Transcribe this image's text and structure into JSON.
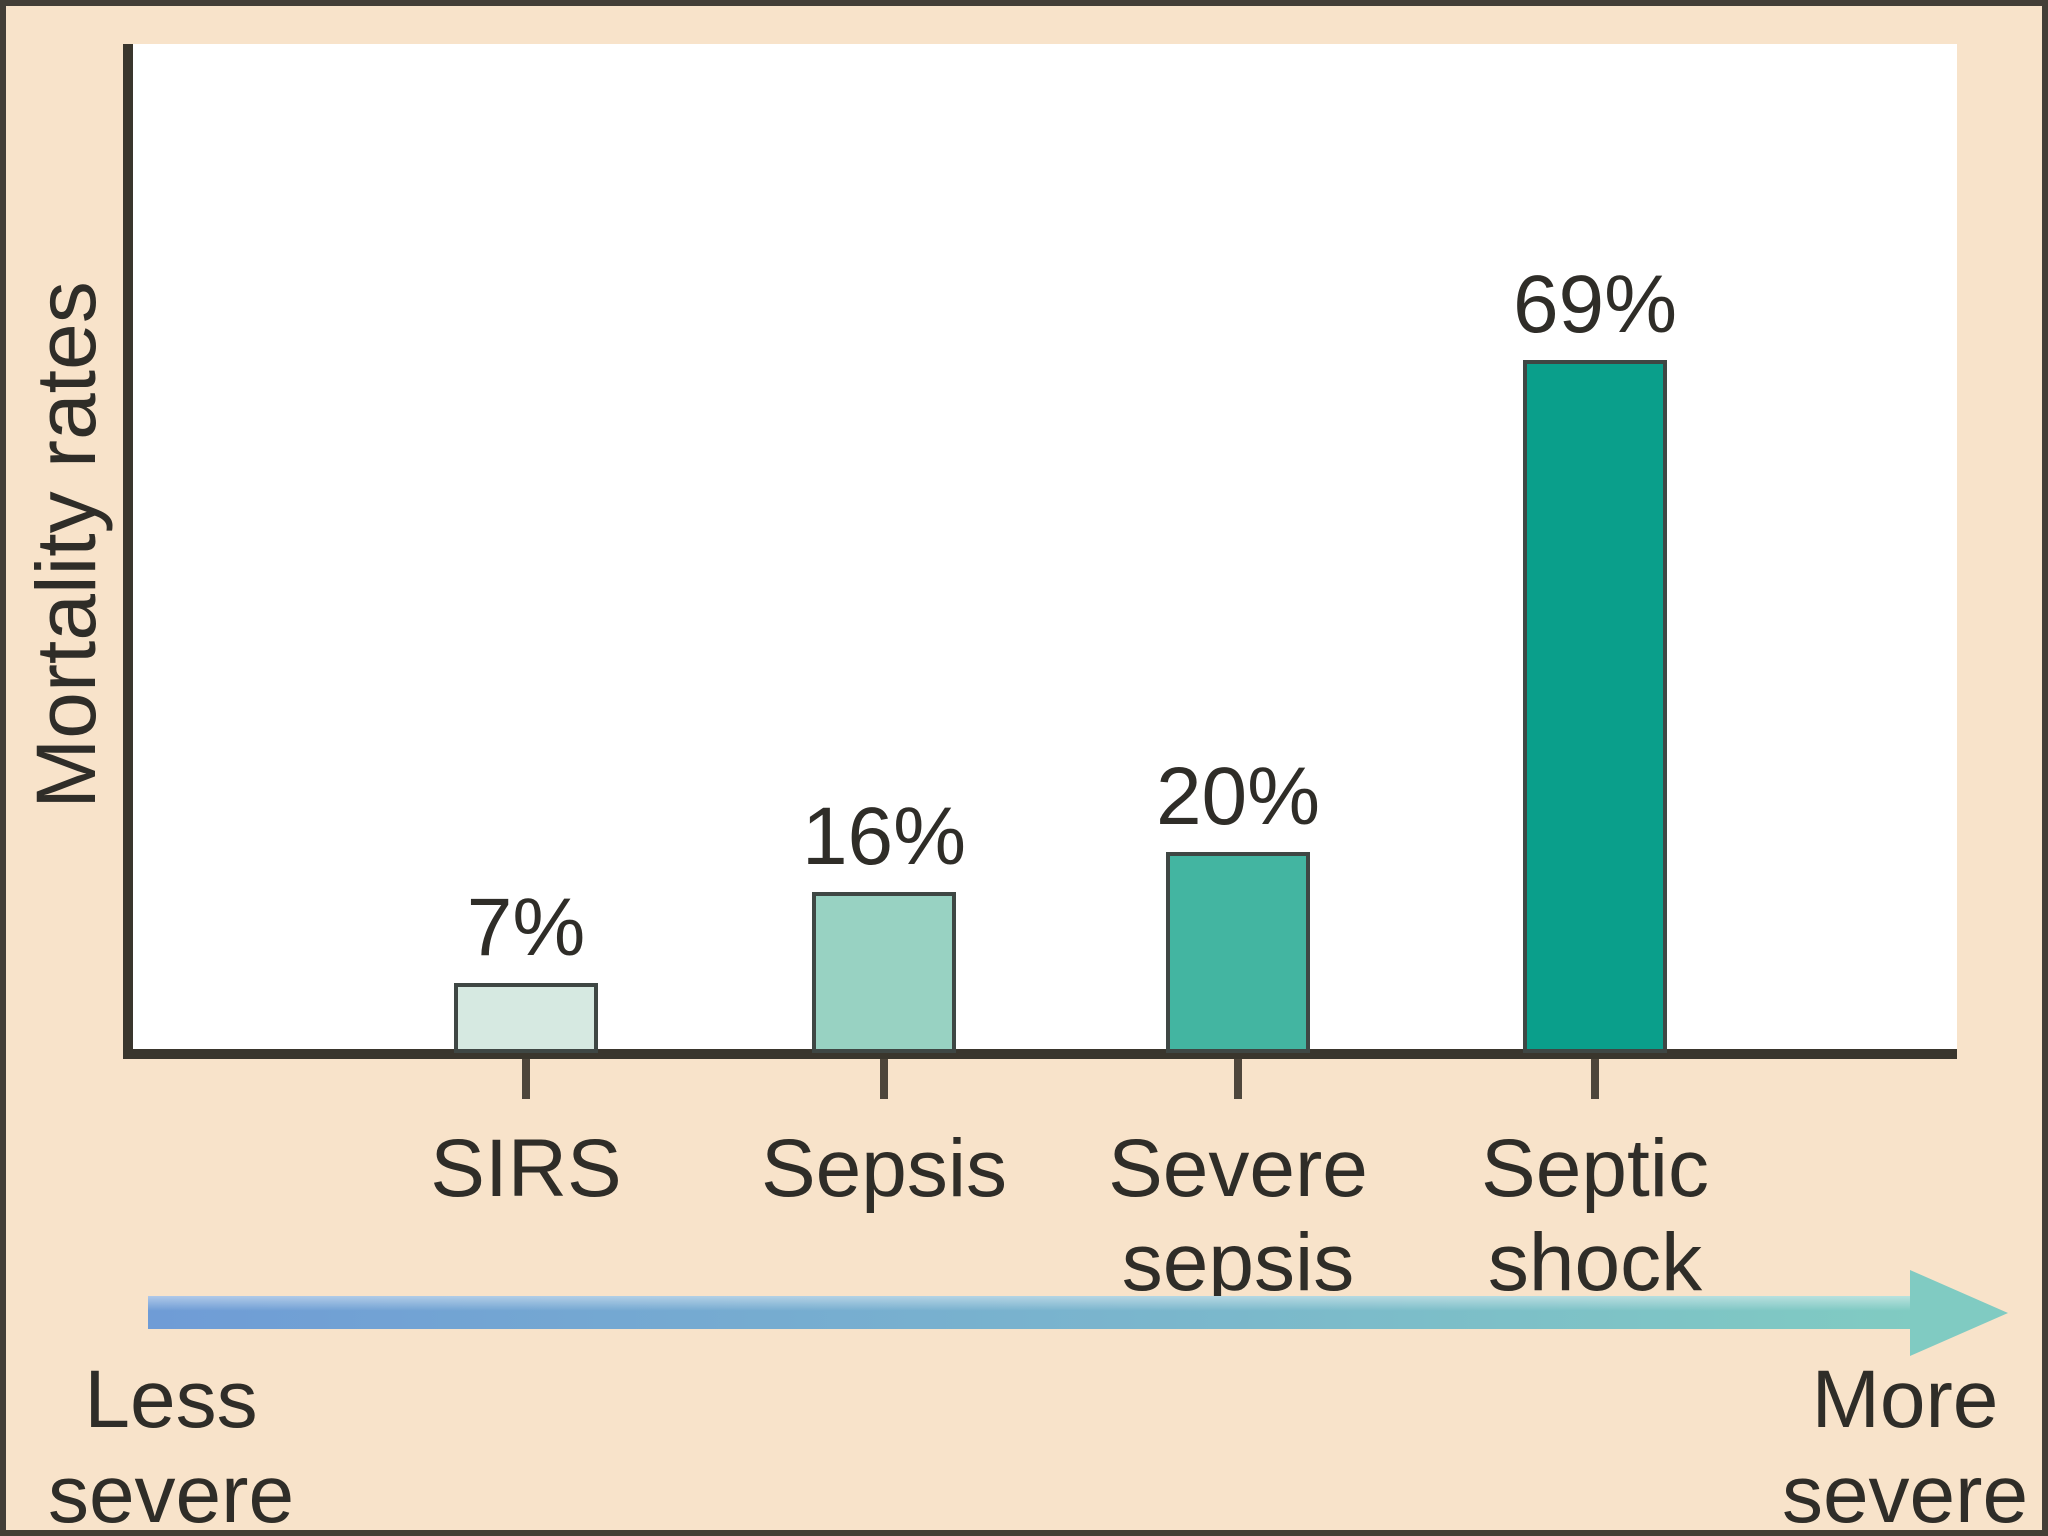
{
  "chart_data": {
    "type": "bar",
    "title": "",
    "categories": [
      "SIRS",
      "Sepsis",
      "Severe\nsepsis",
      "Septic\nshock"
    ],
    "values": [
      7,
      16,
      20,
      69
    ],
    "value_labels": [
      "7%",
      "16%",
      "20%",
      "69%"
    ],
    "ylabel": "Mortality rates",
    "xlabel": "",
    "ylim": [
      0,
      100
    ],
    "grid": false,
    "legend": "none",
    "bar_colors": [
      "#d6e9e1",
      "#98d2c2",
      "#43b5a1",
      "#0a9f8b"
    ],
    "bar_border_color": "#3f4744",
    "axis_color": "#3a362d",
    "plot_background": "#ffffff",
    "page_background": "#f8e3ca",
    "text_color": "#2f2d28"
  },
  "severity_arrow": {
    "start_label": "Less\nsevere",
    "end_label": "More\nsevere",
    "colors": [
      "#6f9cd6",
      "#7ab5cd",
      "#80cbc2"
    ],
    "direction": "left-to-right"
  }
}
